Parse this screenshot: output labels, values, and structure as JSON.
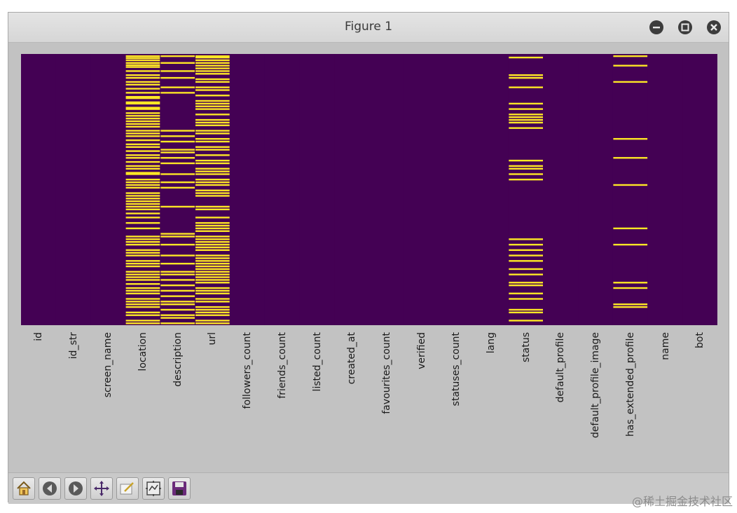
{
  "window": {
    "title": "Figure 1"
  },
  "chart_data": {
    "type": "heatmap",
    "title": "",
    "colormap": "viridis (binary: purple = False, yellow = True)",
    "colors": {
      "false": "#440154",
      "true": "#fde725"
    },
    "columns": [
      "id",
      "id_str",
      "screen_name",
      "location",
      "description",
      "url",
      "followers_count",
      "friends_count",
      "listed_count",
      "created_at",
      "favourites_count",
      "verified",
      "statuses_count",
      "lang",
      "status",
      "default_profile",
      "default_profile_image",
      "has_extended_profile",
      "name",
      "bot"
    ],
    "true_rows_fraction": {
      "location": [
        0.005,
        0.012,
        0.02,
        0.03,
        0.038,
        0.045,
        0.06,
        0.075,
        0.085,
        0.1,
        0.11,
        0.125,
        0.14,
        0.155,
        0.16,
        0.175,
        0.18,
        0.195,
        0.2,
        0.215,
        0.225,
        0.235,
        0.245,
        0.255,
        0.265,
        0.28,
        0.29,
        0.3,
        0.315,
        0.33,
        0.34,
        0.355,
        0.37,
        0.38,
        0.395,
        0.41,
        0.42,
        0.435,
        0.44,
        0.46,
        0.47,
        0.48,
        0.49,
        0.51,
        0.52,
        0.53,
        0.54,
        0.55,
        0.56,
        0.57,
        0.585,
        0.6,
        0.62,
        0.64,
        0.67,
        0.68,
        0.69,
        0.7,
        0.72,
        0.73,
        0.74,
        0.76,
        0.77,
        0.78,
        0.8,
        0.81,
        0.82,
        0.83,
        0.845,
        0.86,
        0.87,
        0.88,
        0.9,
        0.91,
        0.92,
        0.93,
        0.95,
        0.96,
        0.98,
        0.99
      ],
      "description": [
        0.005,
        0.03,
        0.06,
        0.085,
        0.12,
        0.14,
        0.28,
        0.3,
        0.32,
        0.35,
        0.36,
        0.38,
        0.4,
        0.44,
        0.47,
        0.49,
        0.56,
        0.66,
        0.67,
        0.7,
        0.74,
        0.77,
        0.8,
        0.81,
        0.83,
        0.85,
        0.87,
        0.89,
        0.91,
        0.92,
        0.94,
        0.96,
        0.97,
        0.99
      ],
      "url": [
        0.005,
        0.01,
        0.02,
        0.03,
        0.04,
        0.05,
        0.06,
        0.07,
        0.09,
        0.1,
        0.12,
        0.13,
        0.15,
        0.17,
        0.18,
        0.19,
        0.2,
        0.22,
        0.24,
        0.25,
        0.26,
        0.28,
        0.29,
        0.31,
        0.32,
        0.34,
        0.35,
        0.37,
        0.39,
        0.4,
        0.42,
        0.43,
        0.44,
        0.46,
        0.47,
        0.48,
        0.5,
        0.51,
        0.52,
        0.56,
        0.57,
        0.6,
        0.62,
        0.63,
        0.64,
        0.65,
        0.67,
        0.68,
        0.69,
        0.7,
        0.71,
        0.72,
        0.74,
        0.75,
        0.76,
        0.77,
        0.78,
        0.79,
        0.8,
        0.81,
        0.82,
        0.83,
        0.84,
        0.86,
        0.87,
        0.88,
        0.9,
        0.91,
        0.93,
        0.94,
        0.95,
        0.96,
        0.98,
        0.99
      ],
      "status": [
        0.01,
        0.075,
        0.085,
        0.12,
        0.18,
        0.2,
        0.22,
        0.23,
        0.24,
        0.25,
        0.27,
        0.39,
        0.41,
        0.42,
        0.44,
        0.46,
        0.68,
        0.7,
        0.72,
        0.74,
        0.76,
        0.79,
        0.81,
        0.84,
        0.85,
        0.88,
        0.9,
        0.94,
        0.95,
        0.98
      ],
      "has_extended_profile": [
        0.005,
        0.04,
        0.1,
        0.31,
        0.38,
        0.48,
        0.64,
        0.7,
        0.84,
        0.86,
        0.92,
        0.93
      ]
    }
  },
  "toolbar": {
    "buttons": [
      {
        "name": "home-button",
        "icon": "home-icon"
      },
      {
        "name": "back-button",
        "icon": "back-arrow-icon"
      },
      {
        "name": "forward-button",
        "icon": "forward-arrow-icon"
      },
      {
        "name": "pan-button",
        "icon": "pan-move-icon"
      },
      {
        "name": "zoom-button",
        "icon": "zoom-rect-icon"
      },
      {
        "name": "configure-subplots-button",
        "icon": "subplots-icon"
      },
      {
        "name": "save-button",
        "icon": "save-icon"
      }
    ]
  },
  "watermark": "@稀土掘金技术社区"
}
